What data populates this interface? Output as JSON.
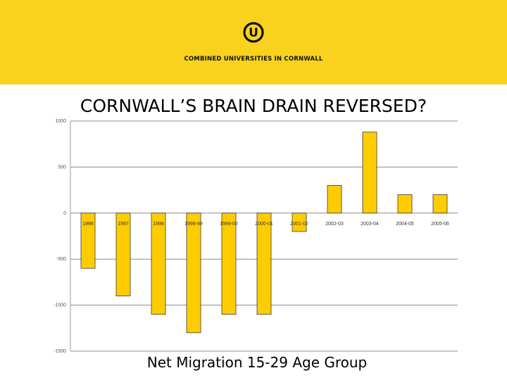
{
  "header": {
    "org_name": "COMBINED UNIVERSITIES IN CORNWALL",
    "logo_letter": "U",
    "brand_color": "#f8d21c"
  },
  "slide": {
    "title": "CORNWALL’S BRAIN DRAIN REVERSED?",
    "subtitle": "Net Migration 15-29 Age Group"
  },
  "chart_data": {
    "type": "bar",
    "categories": [
      "1996",
      "1997",
      "1998",
      "1998-99",
      "1999-00",
      "2000-01",
      "2001-02",
      "2002-03",
      "2003-04",
      "2004-05",
      "2005-06"
    ],
    "values": [
      -600,
      -900,
      -1100,
      -1300,
      -1100,
      -1100,
      -200,
      300,
      880,
      200,
      200
    ],
    "ylim": [
      -1500,
      1000
    ],
    "yticks": [
      "1000",
      "500",
      "0",
      "-500",
      "-1000",
      "-1500"
    ],
    "grid": true,
    "bar_color": "#ffcc00"
  }
}
